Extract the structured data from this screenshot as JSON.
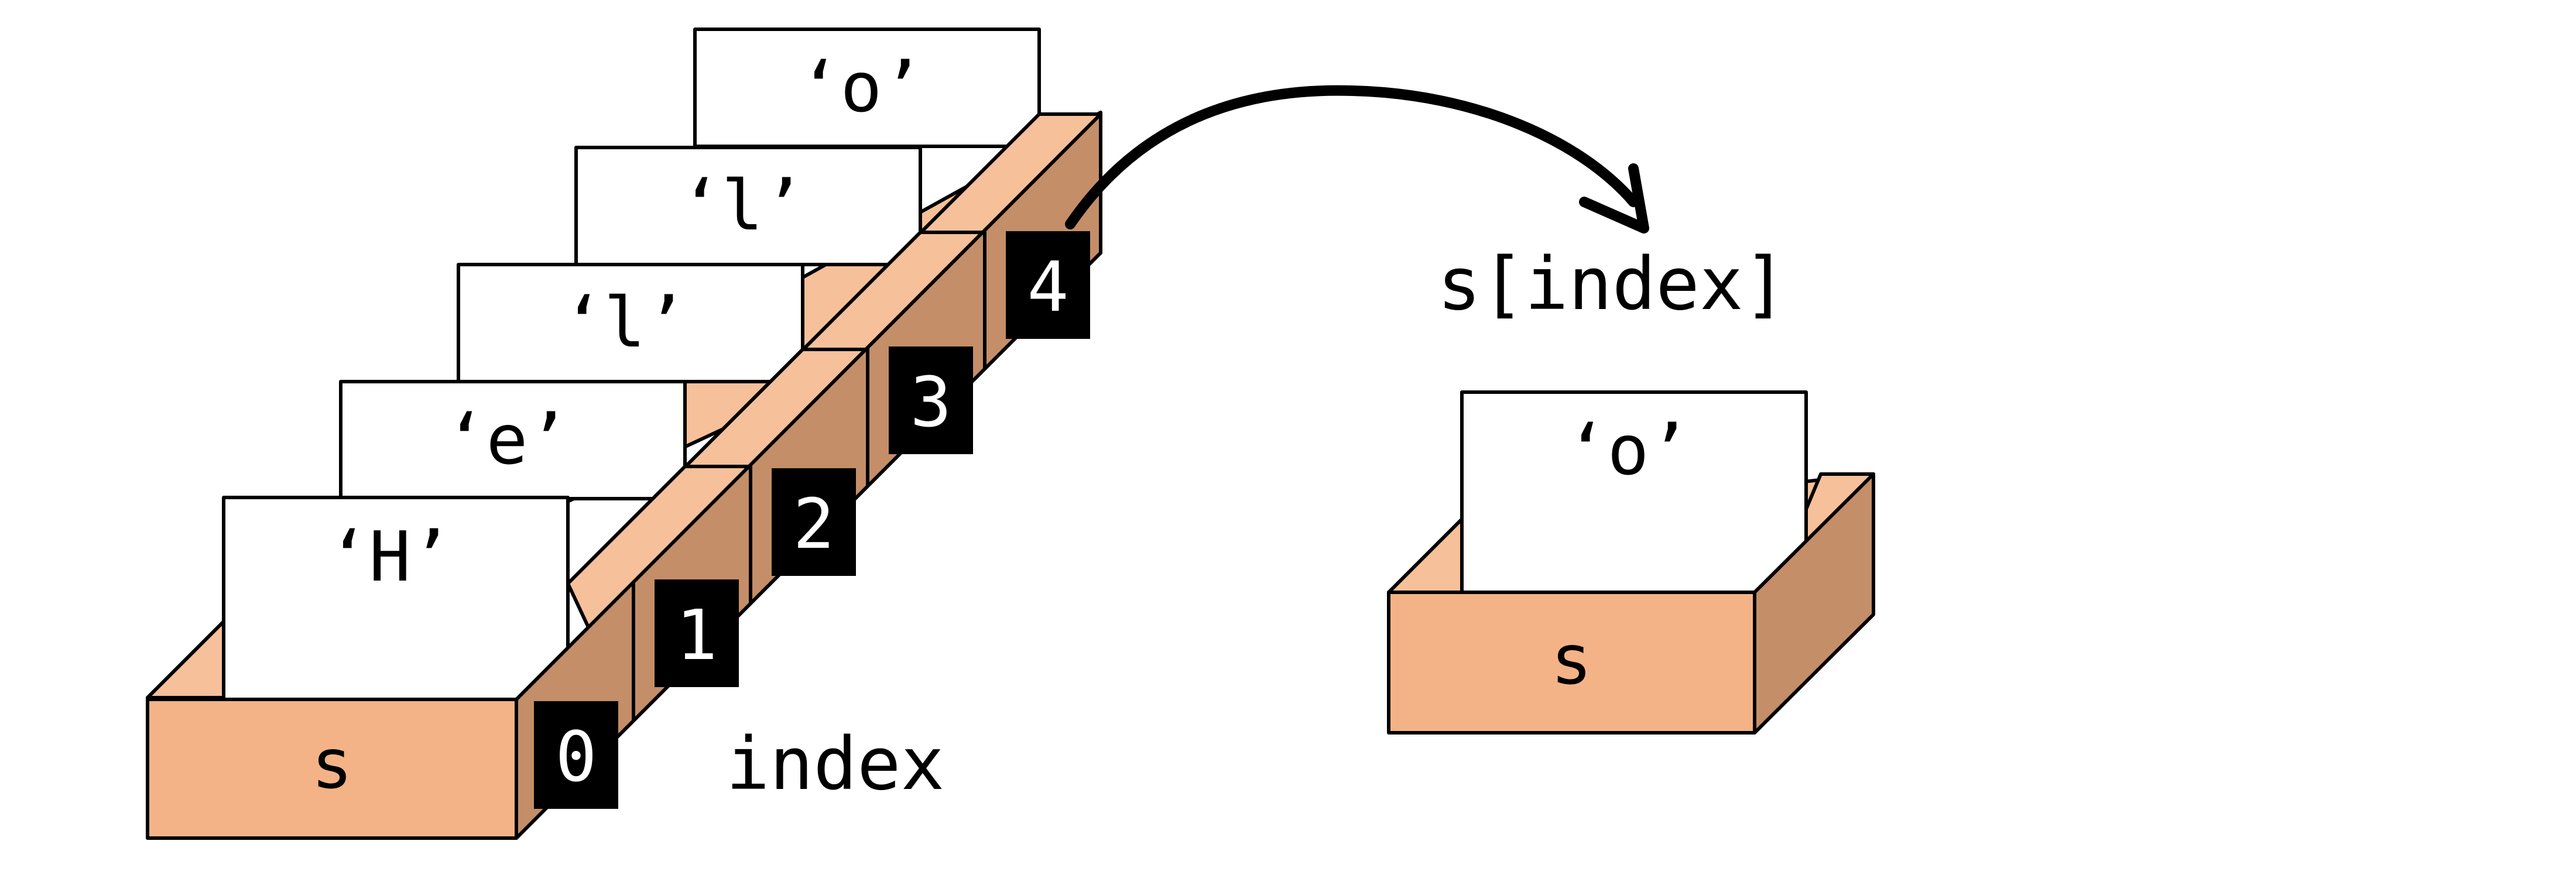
{
  "array": {
    "box_label": "s",
    "axis_label": "index",
    "items": [
      {
        "index": "0",
        "char": "‘H’"
      },
      {
        "index": "1",
        "char": "‘e’"
      },
      {
        "index": "2",
        "char": "‘l’"
      },
      {
        "index": "3",
        "char": "‘l’"
      },
      {
        "index": "4",
        "char": "‘o’"
      }
    ]
  },
  "result": {
    "expression": "s[index]",
    "box_label": "s",
    "char": "‘o’"
  },
  "colors": {
    "box_front": "#F3B386",
    "box_side": "#C48E68",
    "box_top": "#F6C09A",
    "tag": "#000000",
    "card": "#FFFFFF"
  }
}
